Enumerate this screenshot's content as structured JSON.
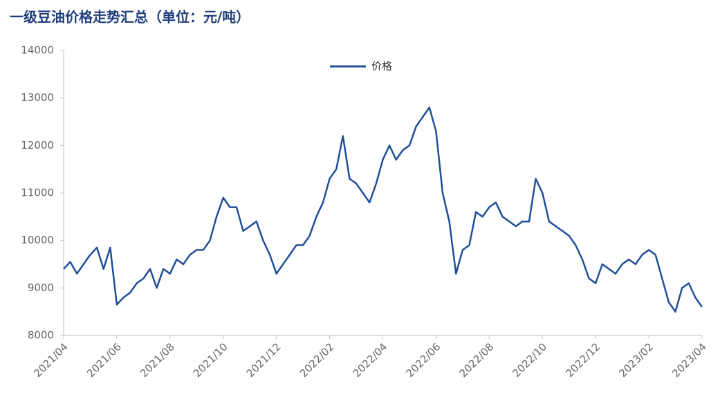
{
  "chart_data": {
    "type": "line",
    "title": "一级豆油价格走势汇总（单位：元/吨）",
    "x": [
      0,
      0.25,
      0.5,
      0.75,
      1,
      1.25,
      1.5,
      1.75,
      2,
      2.25,
      2.5,
      2.75,
      3,
      3.25,
      3.5,
      3.75,
      4,
      4.25,
      4.5,
      4.75,
      5,
      5.25,
      5.5,
      5.75,
      6,
      6.25,
      6.5,
      6.75,
      7,
      7.25,
      7.5,
      7.75,
      8,
      8.25,
      8.5,
      8.75,
      9,
      9.25,
      9.5,
      9.75,
      10,
      10.25,
      10.5,
      10.75,
      11,
      11.25,
      11.5,
      11.75,
      12,
      12.25,
      12.5,
      12.75,
      13,
      13.25,
      13.5,
      13.75,
      14,
      14.25,
      14.5,
      14.75,
      15,
      15.25,
      15.5,
      15.75,
      16,
      16.25,
      16.5,
      16.75,
      17,
      17.25,
      17.5,
      17.75,
      18,
      18.25,
      18.5,
      18.75,
      19,
      19.25,
      19.5,
      19.75,
      20,
      20.25,
      20.5,
      20.75,
      21,
      21.25,
      21.5,
      21.75,
      22,
      22.25,
      22.5,
      22.75,
      23,
      23.25,
      23.5,
      23.75,
      24
    ],
    "series": [
      {
        "name": "价格",
        "color": "#1f4e99",
        "values": [
          9400,
          9550,
          9300,
          9500,
          9700,
          9850,
          9400,
          9850,
          8650,
          8800,
          8900,
          9100,
          9200,
          9400,
          9000,
          9400,
          9300,
          9600,
          9500,
          9700,
          9800,
          9800,
          10000,
          10500,
          10900,
          10700,
          10700,
          10200,
          10300,
          10400,
          10000,
          9700,
          9300,
          9500,
          9700,
          9900,
          9900,
          10100,
          10500,
          10800,
          11300,
          11500,
          12200,
          11300,
          11200,
          11000,
          10800,
          11200,
          11700,
          12000,
          11700,
          11900,
          12000,
          12400,
          12600,
          12800,
          12300,
          11000,
          10400,
          9300,
          9800,
          9900,
          10600,
          10500,
          10700,
          10800,
          10500,
          10400,
          10300,
          10400,
          10400,
          11300,
          11000,
          10400,
          10300,
          10200,
          10100,
          9900,
          9600,
          9200,
          9100,
          9500,
          9400,
          9300,
          9500,
          9600,
          9500,
          9700,
          9800,
          9700,
          9200,
          8700,
          8500,
          9000,
          9100,
          8800,
          8600
        ]
      }
    ],
    "xlim": [
      0,
      24
    ],
    "xticks": [
      {
        "value": 0,
        "label": "2021/04"
      },
      {
        "value": 2,
        "label": "2021/06"
      },
      {
        "value": 4,
        "label": "2021/08"
      },
      {
        "value": 6,
        "label": "2021/10"
      },
      {
        "value": 8,
        "label": "2021/12"
      },
      {
        "value": 10,
        "label": "2022/02"
      },
      {
        "value": 12,
        "label": "2022/04"
      },
      {
        "value": 14,
        "label": "2022/06"
      },
      {
        "value": 16,
        "label": "2022/08"
      },
      {
        "value": 18,
        "label": "2022/10"
      },
      {
        "value": 20,
        "label": "2022/12"
      },
      {
        "value": 22,
        "label": "2023/02"
      },
      {
        "value": 24,
        "label": "2023/04"
      }
    ],
    "ylim": [
      8000,
      14000
    ],
    "yticks": [
      8000,
      9000,
      10000,
      11000,
      12000,
      13000,
      14000
    ],
    "grid": false
  }
}
